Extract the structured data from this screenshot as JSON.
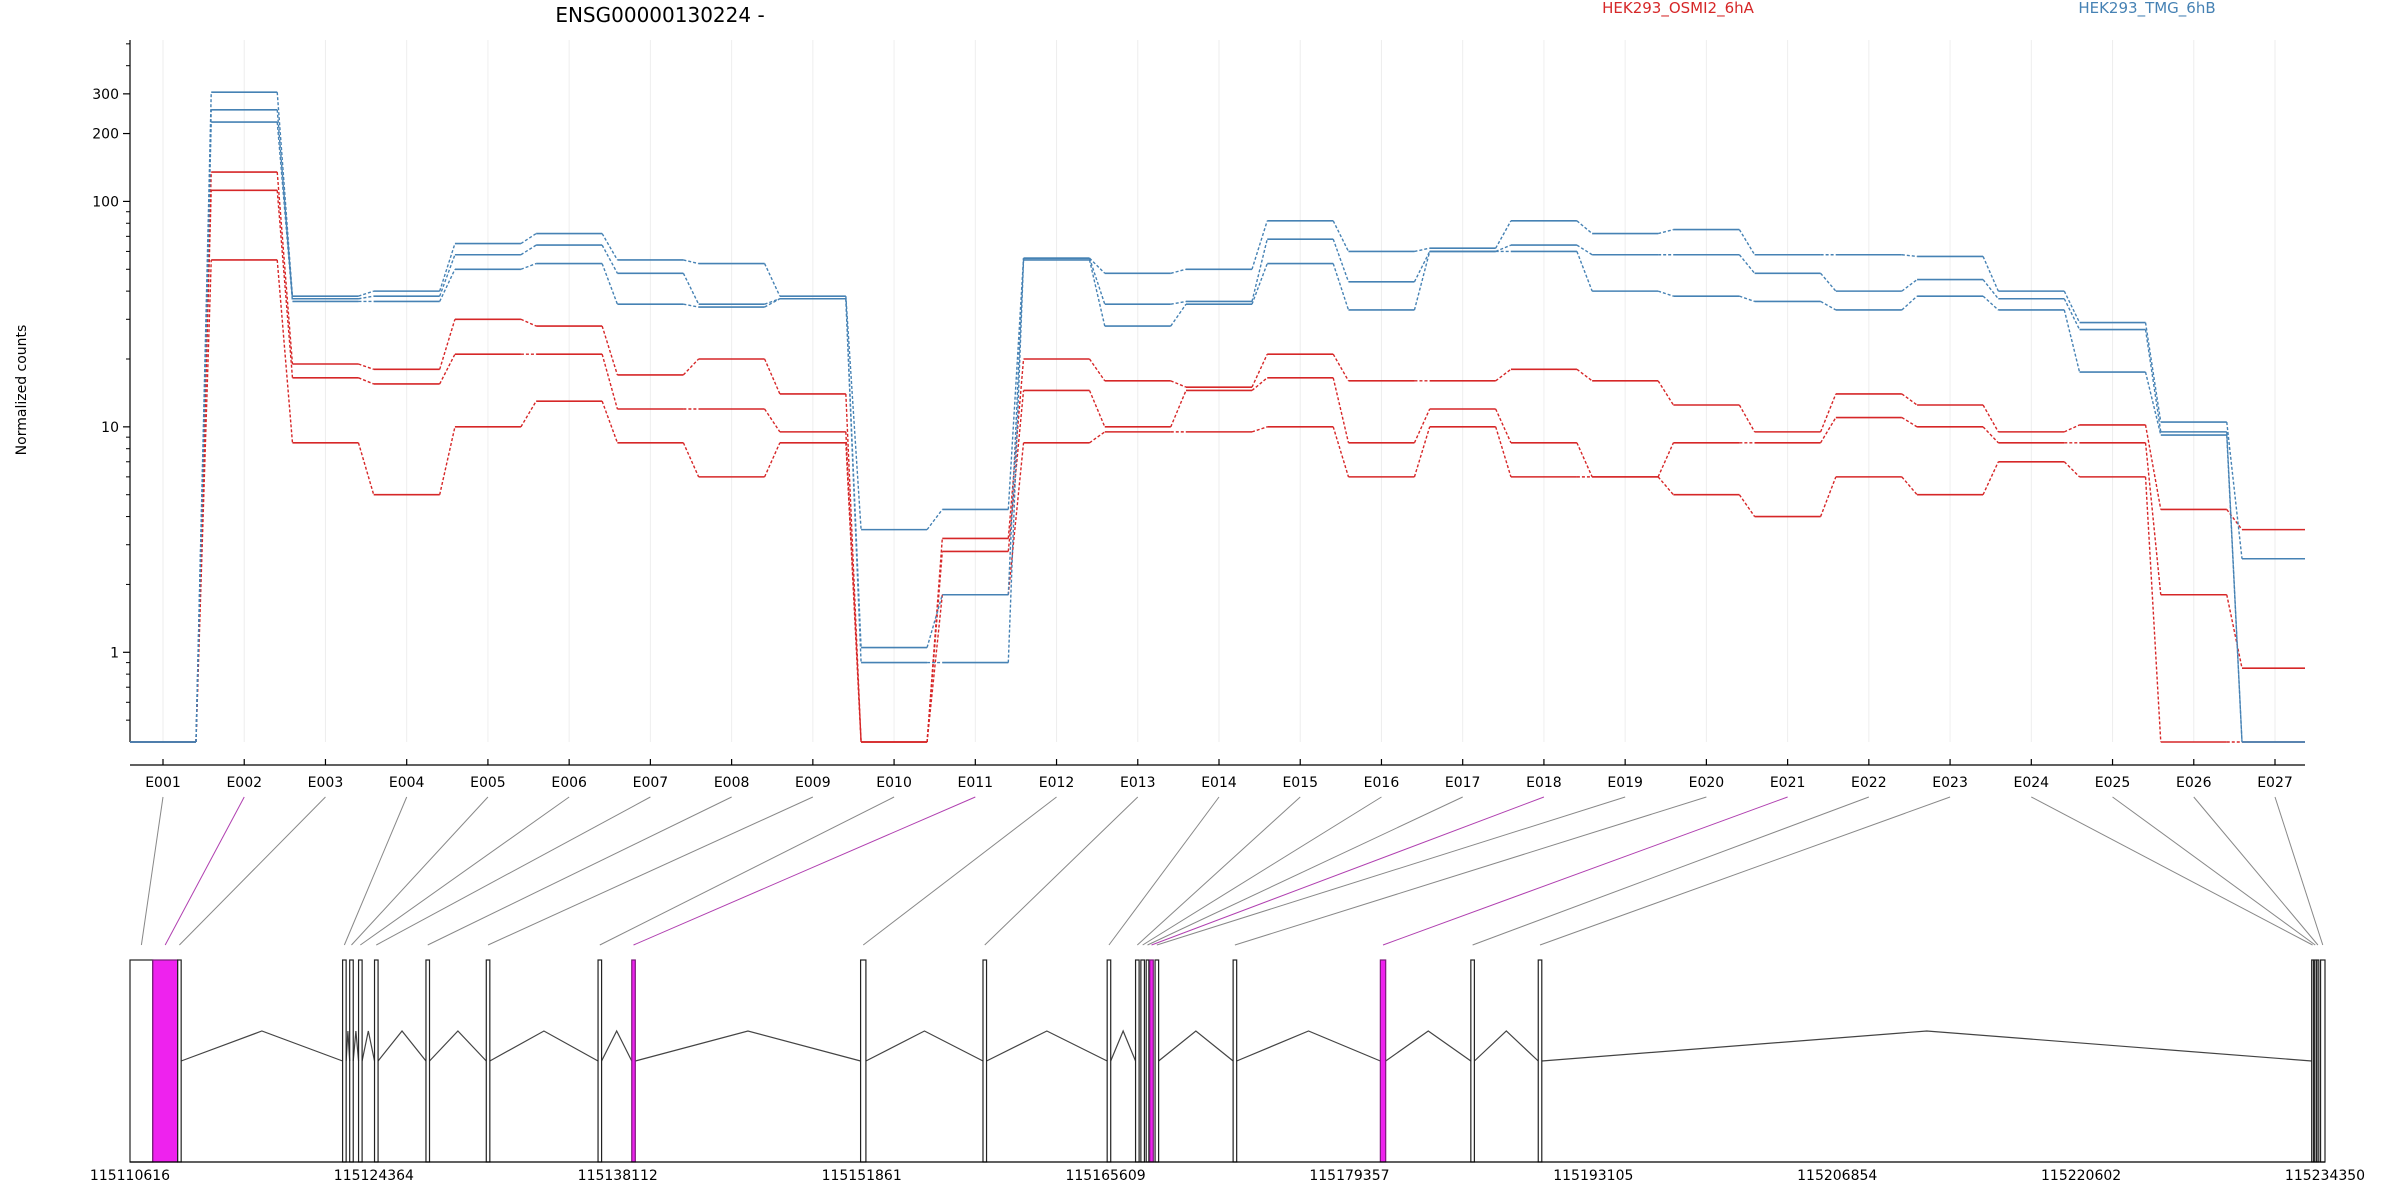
{
  "chart_data": {
    "type": "line",
    "title": "ENSG00000130224 -",
    "ylabel": "Normalized counts",
    "yscale": "log",
    "y_ticks": [
      1,
      10,
      100,
      200,
      300
    ],
    "y_tick_labels": [
      "1",
      "10",
      "100",
      "200",
      "300"
    ],
    "ylim": [
      0.4,
      520
    ],
    "categories": [
      "E001",
      "E002",
      "E003",
      "E004",
      "E005",
      "E006",
      "E007",
      "E008",
      "E009",
      "E010",
      "E011",
      "E012",
      "E013",
      "E014",
      "E015",
      "E016",
      "E017",
      "E018",
      "E019",
      "E020",
      "E021",
      "E022",
      "E023",
      "E024",
      "E025",
      "E026",
      "E027"
    ],
    "grid": "vertical-light",
    "legend": [
      {
        "name": "HEK293_OSMI2_6hA",
        "color": "#d62728",
        "position": "top-center-right"
      },
      {
        "name": "HEK293_TMG_6hB",
        "color": "#4682b4",
        "position": "top-right"
      }
    ],
    "series": [
      {
        "group": "HEK293_OSMI2_6hA",
        "color": "#d62728",
        "values": [
          0.4,
          135,
          19,
          18,
          30,
          28,
          17,
          20,
          14,
          0.4,
          3.2,
          20,
          16,
          15,
          21,
          16,
          16,
          18,
          16,
          12.5,
          9.5,
          14,
          12.5,
          9.5,
          10.2,
          4.3,
          3.5
        ]
      },
      {
        "group": "HEK293_OSMI2_6hA",
        "color": "#d62728",
        "values": [
          0.4,
          112,
          16.5,
          15.5,
          21,
          21,
          12,
          12,
          9.5,
          0.4,
          2.8,
          14.5,
          10,
          14.5,
          16.5,
          8.5,
          12,
          8.5,
          6,
          8.5,
          8.5,
          11,
          10,
          8.5,
          8.5,
          1.8,
          0.85
        ]
      },
      {
        "group": "HEK293_OSMI2_6hA",
        "color": "#d62728",
        "values": [
          0.4,
          55,
          8.5,
          5,
          10,
          13,
          8.5,
          6,
          8.5,
          0.4,
          1.8,
          8.5,
          9.5,
          9.5,
          10,
          6,
          10,
          6,
          6,
          5,
          4,
          6,
          5,
          7,
          6,
          0.4,
          0.4
        ]
      },
      {
        "group": "HEK293_TMG_6hB",
        "color": "#4682b4",
        "values": [
          0.4,
          305,
          38,
          40,
          65,
          72,
          55,
          53,
          38,
          3.5,
          4.3,
          56,
          48,
          50,
          82,
          60,
          62,
          82,
          72,
          75,
          58,
          58,
          57,
          40,
          29,
          10.5,
          2.6
        ]
      },
      {
        "group": "HEK293_TMG_6hB",
        "color": "#4682b4",
        "values": [
          0.4,
          255,
          37,
          38,
          58,
          64,
          48,
          35,
          37,
          1.05,
          1.8,
          56,
          35,
          36,
          68,
          44,
          60,
          64,
          58,
          58,
          48,
          40,
          45,
          37,
          27,
          9.5,
          0.4
        ]
      },
      {
        "group": "HEK293_TMG_6hB",
        "color": "#4682b4",
        "values": [
          0.4,
          225,
          36,
          36,
          50,
          53,
          35,
          34,
          37,
          0.9,
          0.9,
          55,
          28,
          35,
          53,
          33,
          60,
          60,
          40,
          38,
          36,
          33,
          38,
          33,
          17.5,
          9.2,
          0.4
        ]
      }
    ],
    "genome_axis": {
      "tick_labels": [
        "115110616",
        "115124364",
        "115138112",
        "115151861",
        "115165609",
        "115179357",
        "115193105",
        "115206854",
        "115220602",
        "115234350"
      ],
      "range": [
        115110616,
        115234350
      ]
    },
    "gene_model": {
      "exon_bins": [
        {
          "id": "E001",
          "start": 115110616,
          "end": 115111900,
          "highlight": false
        },
        {
          "id": "E002",
          "start": 115111900,
          "end": 115113300,
          "highlight": true
        },
        {
          "id": "E003",
          "start": 115113300,
          "end": 115113500,
          "highlight": false
        },
        {
          "id": "E004",
          "start": 115122600,
          "end": 115122800,
          "highlight": false
        },
        {
          "id": "E005",
          "start": 115123000,
          "end": 115123200,
          "highlight": false
        },
        {
          "id": "E006",
          "start": 115123500,
          "end": 115123700,
          "highlight": false
        },
        {
          "id": "E007",
          "start": 115124400,
          "end": 115124600,
          "highlight": false
        },
        {
          "id": "E008",
          "start": 115127300,
          "end": 115127500,
          "highlight": false
        },
        {
          "id": "E009",
          "start": 115130700,
          "end": 115130900,
          "highlight": false
        },
        {
          "id": "E010",
          "start": 115137000,
          "end": 115137200,
          "highlight": false
        },
        {
          "id": "E011",
          "start": 115138900,
          "end": 115139100,
          "highlight": true
        },
        {
          "id": "E012",
          "start": 115151800,
          "end": 115152100,
          "highlight": false
        },
        {
          "id": "E013",
          "start": 115158700,
          "end": 115158900,
          "highlight": false
        },
        {
          "id": "E014",
          "start": 115165700,
          "end": 115165900,
          "highlight": false
        },
        {
          "id": "E015",
          "start": 115167300,
          "end": 115167500,
          "highlight": false
        },
        {
          "id": "E016",
          "start": 115167600,
          "end": 115167800,
          "highlight": false
        },
        {
          "id": "E017",
          "start": 115167900,
          "end": 115168050,
          "highlight": false
        },
        {
          "id": "E018",
          "start": 115168100,
          "end": 115168300,
          "highlight": true
        },
        {
          "id": "E019",
          "start": 115168400,
          "end": 115168600,
          "highlight": false
        },
        {
          "id": "E020",
          "start": 115172800,
          "end": 115173000,
          "highlight": false
        },
        {
          "id": "E021",
          "start": 115181100,
          "end": 115181400,
          "highlight": true
        },
        {
          "id": "E022",
          "start": 115186200,
          "end": 115186400,
          "highlight": false
        },
        {
          "id": "E023",
          "start": 115190000,
          "end": 115190200,
          "highlight": false
        },
        {
          "id": "E024",
          "start": 115233600,
          "end": 115233700,
          "highlight": false
        },
        {
          "id": "E025",
          "start": 115233750,
          "end": 115233850,
          "highlight": false
        },
        {
          "id": "E026",
          "start": 115233900,
          "end": 115234000,
          "highlight": false
        },
        {
          "id": "E027",
          "start": 115234100,
          "end": 115234350,
          "highlight": false
        }
      ],
      "highlight_color": "#ee22ee"
    }
  }
}
